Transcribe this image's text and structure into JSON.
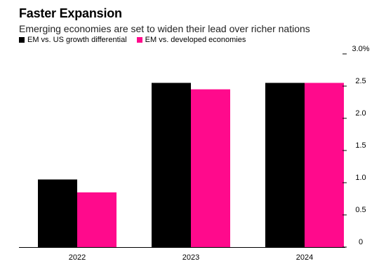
{
  "title": "Faster Expansion",
  "subtitle": "Emerging economies are set to widen their lead over richer nations",
  "colors": {
    "series_1": "#000000",
    "series_2": "#ff0a8c",
    "axis": "#000000"
  },
  "chart_data": {
    "type": "bar",
    "categories": [
      "2022",
      "2023",
      "2024"
    ],
    "series": [
      {
        "name": "EM vs. US growth differential",
        "values": [
          1.05,
          2.55,
          2.55
        ]
      },
      {
        "name": "EM vs. developed economies",
        "values": [
          0.85,
          2.45,
          2.55
        ]
      }
    ],
    "yticks": [
      {
        "value": 3.0,
        "label": "3.0%"
      },
      {
        "value": 2.5,
        "label": "2.5"
      },
      {
        "value": 2.0,
        "label": "2.0"
      },
      {
        "value": 1.5,
        "label": "1.5"
      },
      {
        "value": 1.0,
        "label": "1.0"
      },
      {
        "value": 0.5,
        "label": "0.5"
      },
      {
        "value": 0,
        "label": "0"
      }
    ],
    "ylim": [
      0,
      3.0
    ],
    "xlabel": "",
    "ylabel": "",
    "grid": false,
    "legend_position": "top-left",
    "y_axis_side": "right"
  }
}
